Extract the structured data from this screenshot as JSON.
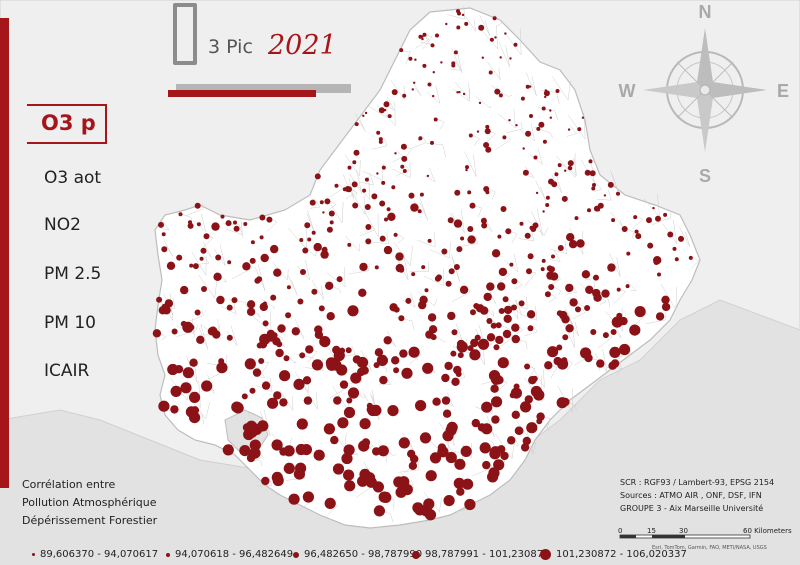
{
  "title": {
    "main": "3 Pic",
    "year": "2021"
  },
  "menu": {
    "active": "O3 p",
    "items": [
      "O3 aot",
      "NO2",
      "PM 2.5",
      "PM 10",
      "ICAIR"
    ]
  },
  "compass": {
    "n": "N",
    "s": "S",
    "e": "E",
    "w": "W"
  },
  "correlation": [
    "Corrélation entre",
    "Pollution Atmosphérique",
    "Dépérissement Forestier"
  ],
  "sources": [
    "SCR : RGF93 / Lambert-93, EPSG 2154",
    "Sources : ATMO AIR , ONF, DSF, IFN",
    "GROUPE 3 - Aix Marseille Université"
  ],
  "scale_bar": {
    "ticks": [
      "0",
      "15",
      "30",
      "60 Kilometers"
    ]
  },
  "attribution": "Esri, TomTom, Garmin, FAO, METI/NASA, USGS",
  "legend": [
    {
      "label": "89,606370 - 94,070617",
      "size": 1
    },
    {
      "label": "94,070618 - 96,482649",
      "size": 2
    },
    {
      "label": "96,482650 - 98,787990",
      "size": 3
    },
    {
      "label": "98,787991 - 101,230871",
      "size": 4
    },
    {
      "label": "101,230872 - 106,020337",
      "size": 5
    }
  ],
  "colors": {
    "accent": "#a5161b",
    "dot": "#8b1216",
    "land": "#ffffff",
    "sea": "#e4e4e4"
  }
}
